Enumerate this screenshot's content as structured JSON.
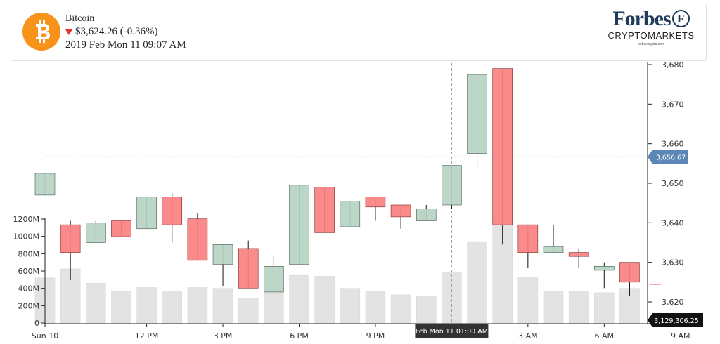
{
  "coin": {
    "name": "Bitcoin",
    "price": "$3,624.26 (-0.36%)",
    "timestamp": "2019 Feb Mon 11 09:07 AM",
    "logo_icon": "bitcoin-icon",
    "logo_color": "#f7931a",
    "change_icon": "down-triangle-icon",
    "change_color": "#e8322e"
  },
  "brand": {
    "name": "Forbes",
    "seal": "F",
    "subtitle": "CRYPTOMARKETS",
    "url": "forbescrypto.com"
  },
  "colors": {
    "up": "#b6d3c2",
    "down": "#fb8080",
    "volume": "#e3e3e3",
    "price_marker": "#5b86b5",
    "volume_marker": "#111111"
  },
  "crosshair": {
    "time_label": "Feb Mon 11 01:00 AM",
    "price_label": "3,656.67",
    "price_value": 3656.67
  },
  "volume_label": "3,129,306.25",
  "chart_data": {
    "type": "candlestick",
    "price_ylim": [
      3620,
      3680
    ],
    "price_ticks": [
      "3,620",
      "3,630",
      "3,640",
      "3,650",
      "3,660",
      "3,670",
      "3,680"
    ],
    "volume_ylim": [
      0,
      1200
    ],
    "volume_ticks": [
      "0",
      "200M",
      "400M",
      "600M",
      "800M",
      "1000M",
      "1200M"
    ],
    "x_ticks": [
      "Sun 10",
      "12 PM",
      "3 PM",
      "6 PM",
      "9 PM",
      "Mon 11",
      "3 AM",
      "6 AM",
      "9 AM"
    ],
    "x_tick_hours": [
      0,
      12,
      15,
      18,
      21,
      24,
      27,
      30,
      33
    ],
    "candles": [
      {
        "h": 8,
        "o": 3647.0,
        "c": 3652.5,
        "hi": 3652.5,
        "lo": 3647.0,
        "v": 520
      },
      {
        "h": 9,
        "o": 3639.5,
        "c": 3632.5,
        "hi": 3640.5,
        "lo": 3625.5,
        "v": 625
      },
      {
        "h": 10,
        "o": 3635.0,
        "c": 3640.0,
        "hi": 3640.5,
        "lo": 3635.0,
        "v": 460
      },
      {
        "h": 11,
        "o": 3640.5,
        "c": 3636.5,
        "hi": 3640.5,
        "lo": 3636.5,
        "v": 365
      },
      {
        "h": 12,
        "o": 3638.5,
        "c": 3646.5,
        "hi": 3646.5,
        "lo": 3638.5,
        "v": 410
      },
      {
        "h": 13,
        "o": 3646.5,
        "c": 3639.5,
        "hi": 3647.5,
        "lo": 3635.0,
        "v": 370
      },
      {
        "h": 14,
        "o": 3641.0,
        "c": 3630.5,
        "hi": 3642.5,
        "lo": 3630.5,
        "v": 410
      },
      {
        "h": 15,
        "o": 3629.5,
        "c": 3634.5,
        "hi": 3634.5,
        "lo": 3624.0,
        "v": 400
      },
      {
        "h": 16,
        "o": 3633.5,
        "c": 3623.5,
        "hi": 3635.5,
        "lo": 3623.5,
        "v": 290
      },
      {
        "h": 17,
        "o": 3622.5,
        "c": 3629.0,
        "hi": 3631.5,
        "lo": 3622.5,
        "v": 390
      },
      {
        "h": 18,
        "o": 3629.5,
        "c": 3649.5,
        "hi": 3649.5,
        "lo": 3629.5,
        "v": 550
      },
      {
        "h": 19,
        "o": 3649.0,
        "c": 3637.5,
        "hi": 3649.0,
        "lo": 3637.5,
        "v": 540
      },
      {
        "h": 20,
        "o": 3639.0,
        "c": 3645.5,
        "hi": 3645.5,
        "lo": 3639.0,
        "v": 400
      },
      {
        "h": 21,
        "o": 3646.5,
        "c": 3644.0,
        "hi": 3646.5,
        "lo": 3640.5,
        "v": 370
      },
      {
        "h": 22,
        "o": 3644.5,
        "c": 3641.5,
        "hi": 3644.5,
        "lo": 3638.5,
        "v": 325
      },
      {
        "h": 23,
        "o": 3640.5,
        "c": 3643.5,
        "hi": 3644.5,
        "lo": 3640.5,
        "v": 310
      },
      {
        "h": 24,
        "o": 3644.5,
        "c": 3654.5,
        "hi": 3654.5,
        "lo": 3643.5,
        "v": 580
      },
      {
        "h": 25,
        "o": 3657.5,
        "c": 3677.5,
        "hi": 3677.5,
        "lo": 3653.5,
        "v": 940
      },
      {
        "h": 26,
        "o": 3679.0,
        "c": 3639.5,
        "hi": 3679.0,
        "lo": 3634.5,
        "v": 1220
      },
      {
        "h": 27,
        "o": 3639.5,
        "c": 3632.5,
        "hi": 3639.5,
        "lo": 3628.5,
        "v": 530
      },
      {
        "h": 28,
        "o": 3632.5,
        "c": 3634.0,
        "hi": 3639.5,
        "lo": 3632.5,
        "v": 370
      },
      {
        "h": 29,
        "o": 3632.5,
        "c": 3631.5,
        "hi": 3633.5,
        "lo": 3628.5,
        "v": 370
      },
      {
        "h": 30,
        "o": 3628.0,
        "c": 3629.0,
        "hi": 3630.0,
        "lo": 3623.5,
        "v": 350
      },
      {
        "h": 31,
        "o": 3630.0,
        "c": 3625.0,
        "hi": 3630.0,
        "lo": 3621.5,
        "v": 400
      },
      {
        "h": 32,
        "o": 3624.4,
        "c": 3624.3,
        "hi": 3624.4,
        "lo": 3624.3,
        "v": 0
      }
    ]
  }
}
